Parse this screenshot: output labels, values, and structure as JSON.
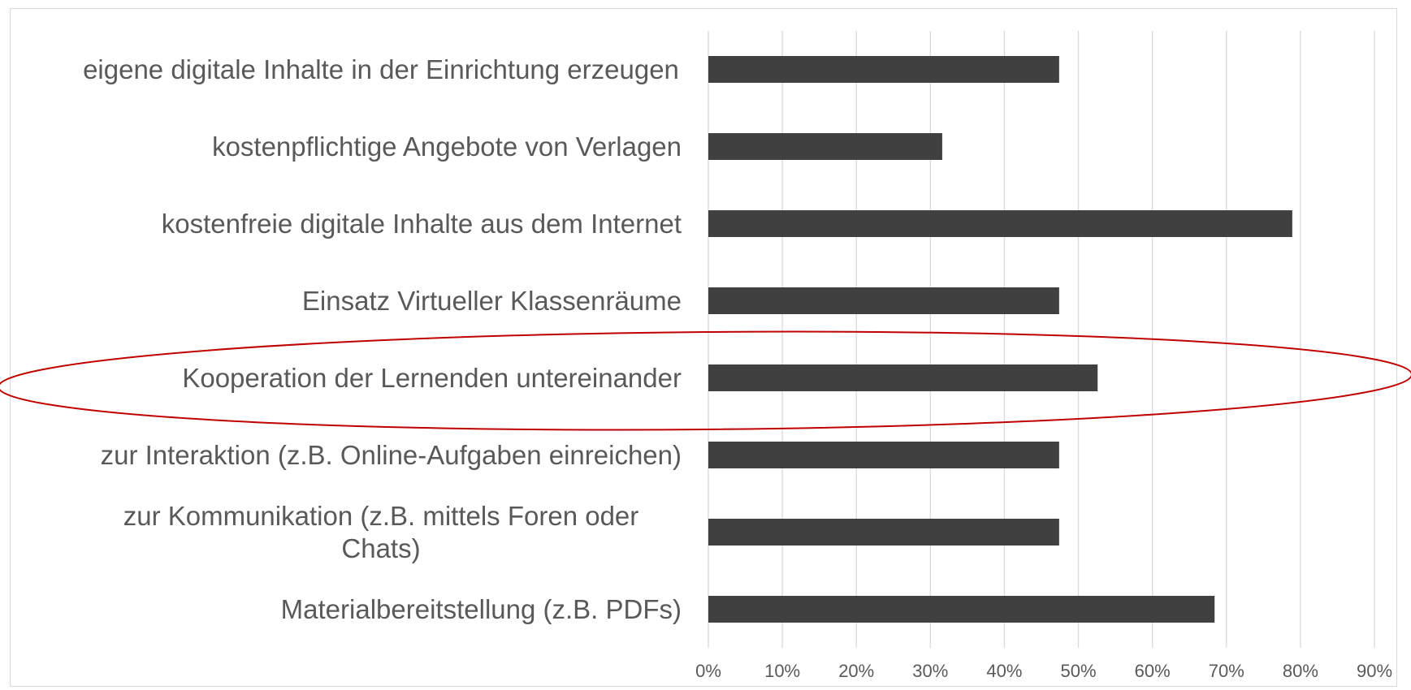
{
  "chart_data": {
    "type": "bar",
    "orientation": "horizontal",
    "categories": [
      "eigene digitale Inhalte in der Einrichtung erzeugen",
      "kostenpflichtige Angebote von Verlagen",
      "kostenfreie digitale Inhalte aus dem Internet",
      "Einsatz Virtueller Klassenräume",
      "Kooperation der Lernenden untereinander",
      "zur Interaktion (z.B. Online-Aufgaben einreichen)",
      "zur Kommunikation (z.B. mittels Foren oder Chats)",
      "Materialbereitstellung (z.B. PDFs)"
    ],
    "values": [
      47.4,
      31.6,
      78.9,
      47.4,
      52.6,
      47.4,
      47.4,
      68.4
    ],
    "color": "#404040",
    "xlim": [
      0,
      90
    ],
    "xticks": [
      {
        "value": 0,
        "label": "0%"
      },
      {
        "value": 10,
        "label": "10%"
      },
      {
        "value": 20,
        "label": "20%"
      },
      {
        "value": 30,
        "label": "30%"
      },
      {
        "value": 40,
        "label": "40%"
      },
      {
        "value": 50,
        "label": "50%"
      },
      {
        "value": 60,
        "label": "60%"
      },
      {
        "value": 70,
        "label": "70%"
      },
      {
        "value": 80,
        "label": "80%"
      },
      {
        "value": 90,
        "label": "90%"
      }
    ],
    "grid": true
  }
}
